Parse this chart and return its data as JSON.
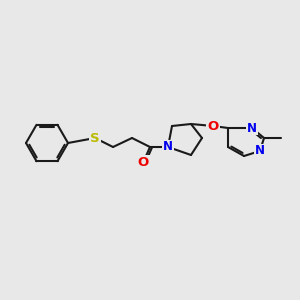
{
  "bg_color": "#e8e8e8",
  "line_color": "#1a1a1a",
  "bond_width": 1.5,
  "figsize": [
    3.0,
    3.0
  ],
  "dpi": 100,
  "atom_colors": {
    "N": "#0000ee",
    "O": "#ee0000",
    "S": "#bbbb00"
  },
  "font_size": 8.5
}
